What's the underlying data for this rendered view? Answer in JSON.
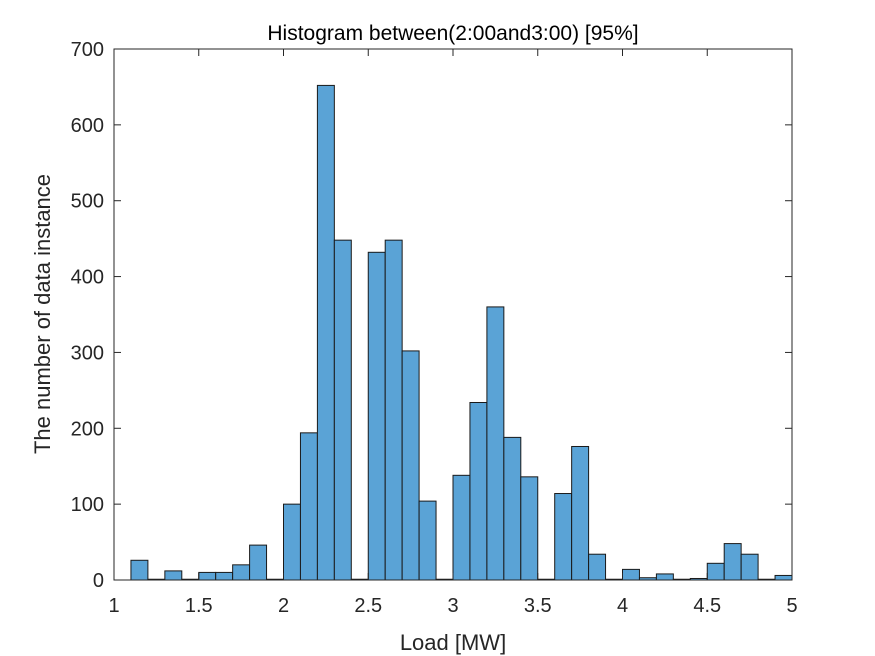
{
  "chart_data": {
    "type": "bar",
    "title": "Histogram between(2:00and3:00) [95%]",
    "xlabel": "Load [MW]",
    "ylabel": "The number of data instance",
    "xlim": [
      1,
      5
    ],
    "ylim": [
      0,
      700
    ],
    "xticks": [
      1,
      1.5,
      2,
      2.5,
      3,
      3.5,
      4,
      4.5,
      5
    ],
    "xtick_labels": [
      "1",
      "1.5",
      "2",
      "2.5",
      "3",
      "3.5",
      "4",
      "4.5",
      "5"
    ],
    "yticks": [
      0,
      100,
      200,
      300,
      400,
      500,
      600,
      700
    ],
    "ytick_labels": [
      "0",
      "100",
      "200",
      "300",
      "400",
      "500",
      "600",
      "700"
    ],
    "grid": false,
    "bin_edges": [
      1.1,
      1.2,
      1.3,
      1.4,
      1.5,
      1.6,
      1.7,
      1.8,
      1.9,
      2.0,
      2.1,
      2.2,
      2.3,
      2.4,
      2.5,
      2.6,
      2.7,
      2.8,
      2.9,
      3.0,
      3.1,
      3.2,
      3.3,
      3.4,
      3.5,
      3.6,
      3.7,
      3.8,
      3.9,
      4.0,
      4.1,
      4.2,
      4.3,
      4.4,
      4.5,
      4.6,
      4.7,
      4.8,
      4.9,
      5.0
    ],
    "values": [
      26,
      1,
      12,
      1,
      10,
      10,
      20,
      46,
      1,
      100,
      194,
      652,
      448,
      1,
      432,
      448,
      302,
      104,
      1,
      138,
      234,
      360,
      188,
      136,
      1,
      114,
      176,
      34,
      1,
      14,
      3,
      8,
      1,
      2,
      22,
      48,
      34,
      1,
      6
    ],
    "bar_color": "#5AA3D6",
    "bar_edge_color": "#1A1A1A"
  }
}
